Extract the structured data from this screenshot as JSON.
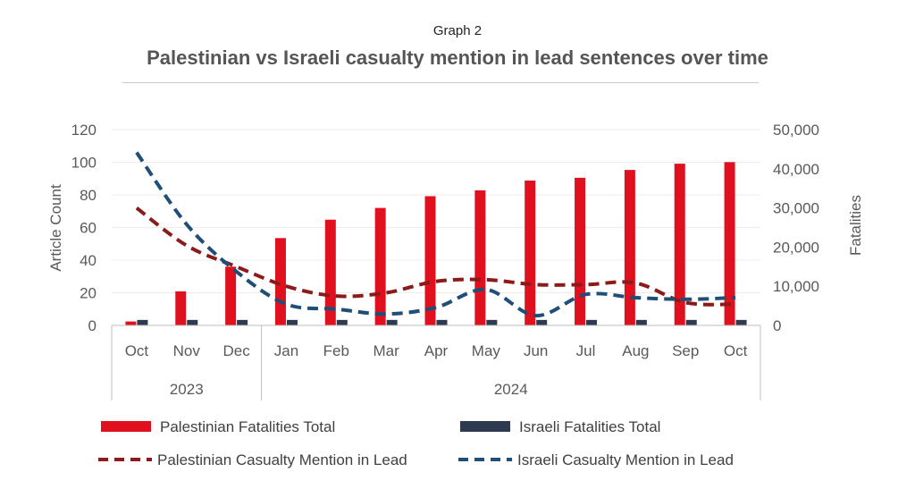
{
  "header": {
    "subtitle": "Graph 2",
    "title": "Palestinian vs Israeli casualty mention in lead sentences over time"
  },
  "colors": {
    "palestinian_bar": "#e0101e",
    "israeli_bar": "#2e3a4f",
    "palestinian_line": "#8b1a1a",
    "israeli_line": "#1f4e79",
    "grid": "#ececec",
    "axis": "#bfbfbf"
  },
  "chart_data": {
    "type": "bar",
    "title": "Palestinian vs Israeli casualty mention in lead sentences over time",
    "categories": [
      "Oct",
      "Nov",
      "Dec",
      "Jan",
      "Feb",
      "Mar",
      "Apr",
      "May",
      "Jun",
      "Jul",
      "Aug",
      "Sep",
      "Oct"
    ],
    "years": [
      {
        "label": "2023",
        "span": 3
      },
      {
        "label": "2024",
        "span": 10
      }
    ],
    "ylabel": "Article Count",
    "y2label": "Fatalities",
    "ylim": [
      0,
      120
    ],
    "y2lim": [
      0,
      50000
    ],
    "yticks": [
      "0",
      "20",
      "40",
      "60",
      "80",
      "100",
      "120"
    ],
    "y2ticks": [
      "0",
      "10,000",
      "20,000",
      "30,000",
      "40,000",
      "50,000"
    ],
    "grid": true,
    "legend": "bottom",
    "series": [
      {
        "name": "Palestinian Fatalities Total",
        "type": "bar",
        "axis": "right",
        "values": [
          1000,
          8700,
          15000,
          22300,
          27000,
          30000,
          33000,
          34500,
          37000,
          37700,
          39700,
          41300,
          41700
        ]
      },
      {
        "name": "Israeli Fatalities Total",
        "type": "bar",
        "axis": "right",
        "values": [
          1400,
          1400,
          1400,
          1400,
          1400,
          1400,
          1400,
          1400,
          1400,
          1400,
          1400,
          1400,
          1400
        ]
      },
      {
        "name": "Palestinian Casualty Mention in Lead",
        "type": "line",
        "axis": "left",
        "values": [
          72,
          49,
          36,
          24,
          18,
          20,
          27,
          28,
          25,
          25,
          26,
          14,
          13
        ]
      },
      {
        "name": "Israeli Casualty Mention in Lead",
        "type": "line",
        "axis": "left",
        "values": [
          106,
          62,
          33,
          13,
          10,
          7,
          11,
          22,
          6,
          19,
          17,
          16,
          17
        ]
      }
    ]
  }
}
